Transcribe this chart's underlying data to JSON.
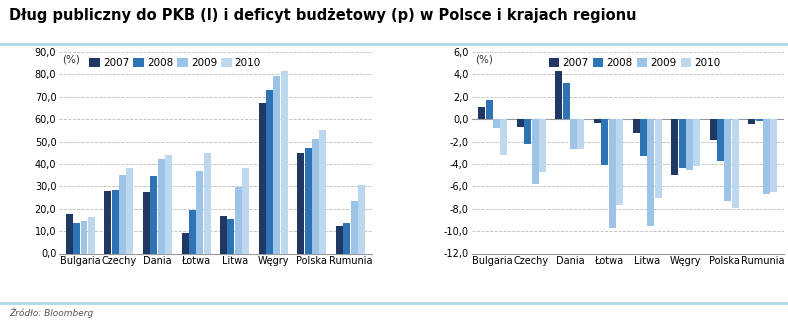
{
  "title": "Dług publiczny do PKB (l) i deficyt budżetowy (p) w Polsce i krajach regionu",
  "source": "Źródło: Bloomberg",
  "categories": [
    "Bulgaria",
    "Czechy",
    "Dania",
    "Łotwa",
    "Litwa",
    "Węgry",
    "Polska",
    "Rumunia"
  ],
  "years": [
    "2007",
    "2008",
    "2009",
    "2010"
  ],
  "colors": [
    "#1F3864",
    "#2E74B5",
    "#9DC3E6",
    "#BDD7EE"
  ],
  "left_data": {
    "2007": [
      17.5,
      28.0,
      27.5,
      9.0,
      16.8,
      67.0,
      45.0,
      12.5
    ],
    "2008": [
      13.5,
      28.5,
      34.5,
      19.5,
      15.5,
      73.0,
      47.0,
      13.5
    ],
    "2009": [
      14.5,
      35.0,
      42.0,
      37.0,
      29.5,
      79.5,
      51.0,
      23.5
    ],
    "2010": [
      16.5,
      38.0,
      44.0,
      45.0,
      38.0,
      81.5,
      55.0,
      30.5
    ]
  },
  "right_data": {
    "2007": [
      1.1,
      -0.7,
      4.8,
      -0.3,
      -1.2,
      -5.0,
      -1.9,
      -0.4
    ],
    "2008": [
      1.7,
      -2.2,
      3.2,
      -4.1,
      -3.3,
      -4.4,
      -3.7,
      -0.2
    ],
    "2009": [
      -0.8,
      -5.8,
      -2.7,
      -9.7,
      -9.5,
      -4.5,
      -7.3,
      -6.7
    ],
    "2010": [
      -3.2,
      -4.7,
      -2.7,
      -7.7,
      -7.0,
      -4.2,
      -7.9,
      -6.5
    ]
  },
  "left_ylim": [
    0,
    90
  ],
  "left_yticks": [
    0,
    10,
    20,
    30,
    40,
    50,
    60,
    70,
    80,
    90
  ],
  "right_ylim": [
    -12,
    6
  ],
  "right_yticks": [
    -12,
    -10,
    -8,
    -6,
    -4,
    -2,
    0,
    2,
    4,
    6
  ],
  "background_color": "#FFFFFF",
  "grid_color": "#BBBBBB",
  "title_fontsize": 10.5,
  "tick_fontsize": 7,
  "label_fontsize": 7.5,
  "legend_fontsize": 7.5
}
